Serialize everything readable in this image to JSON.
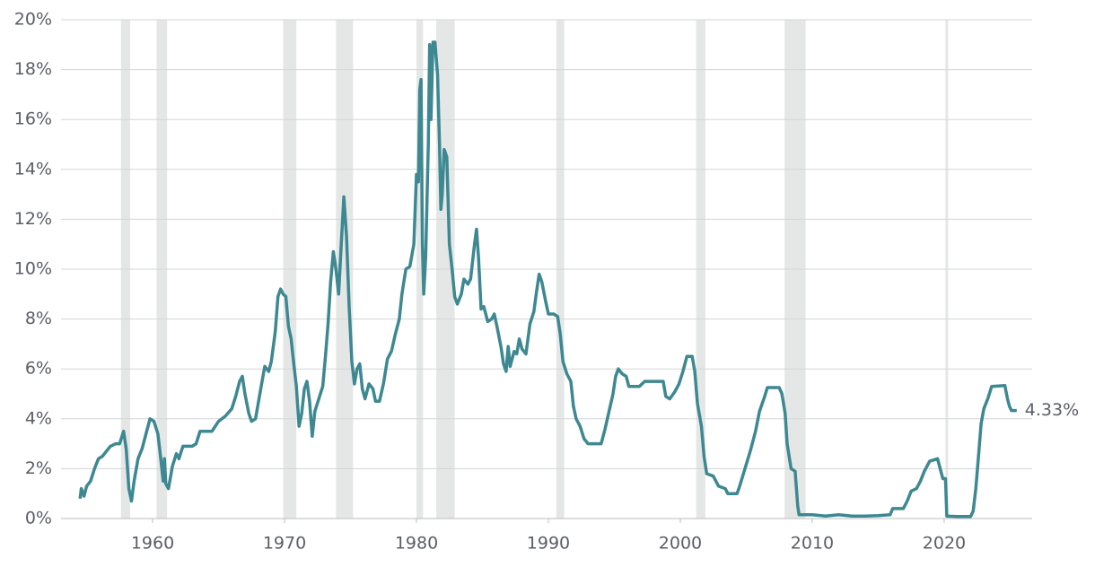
{
  "chart_data": {
    "type": "line",
    "x": [
      1954.5,
      1954.6,
      1954.8,
      1955.0,
      1955.3,
      1955.6,
      1955.9,
      1956.2,
      1956.5,
      1956.8,
      1957.2,
      1957.5,
      1957.8,
      1958.0,
      1958.2,
      1958.4,
      1958.6,
      1958.9,
      1959.2,
      1959.5,
      1959.8,
      1960.1,
      1960.4,
      1960.6,
      1960.8,
      1960.9,
      1961.0,
      1961.2,
      1961.5,
      1961.8,
      1962.0,
      1962.3,
      1962.7,
      1963.0,
      1963.3,
      1963.6,
      1964.0,
      1964.5,
      1965.0,
      1965.5,
      1966.0,
      1966.3,
      1966.6,
      1966.8,
      1967.0,
      1967.3,
      1967.5,
      1967.8,
      1968.0,
      1968.3,
      1968.5,
      1968.8,
      1969.0,
      1969.3,
      1969.5,
      1969.7,
      1969.9,
      1970.1,
      1970.3,
      1970.5,
      1970.7,
      1970.9,
      1971.1,
      1971.3,
      1971.5,
      1971.7,
      1971.9,
      1972.1,
      1972.3,
      1972.6,
      1972.9,
      1973.1,
      1973.3,
      1973.5,
      1973.7,
      1973.9,
      1974.1,
      1974.3,
      1974.5,
      1974.7,
      1974.9,
      1975.1,
      1975.3,
      1975.5,
      1975.7,
      1975.9,
      1976.1,
      1976.4,
      1976.7,
      1976.9,
      1977.2,
      1977.5,
      1977.8,
      1978.1,
      1978.4,
      1978.7,
      1978.9,
      1979.2,
      1979.5,
      1979.8,
      1980.0,
      1980.15,
      1980.25,
      1980.35,
      1980.45,
      1980.55,
      1980.7,
      1980.9,
      1981.0,
      1981.1,
      1981.25,
      1981.4,
      1981.6,
      1981.75,
      1981.85,
      1981.95,
      1982.1,
      1982.3,
      1982.5,
      1982.7,
      1982.9,
      1983.1,
      1983.4,
      1983.6,
      1983.9,
      1984.1,
      1984.4,
      1984.55,
      1984.7,
      1984.9,
      1985.1,
      1985.4,
      1985.7,
      1985.9,
      1986.1,
      1986.4,
      1986.6,
      1986.8,
      1986.95,
      1987.1,
      1987.4,
      1987.6,
      1987.8,
      1988.0,
      1988.3,
      1988.6,
      1988.9,
      1989.1,
      1989.3,
      1989.5,
      1989.8,
      1990.0,
      1990.4,
      1990.7,
      1990.9,
      1991.1,
      1991.4,
      1991.7,
      1991.9,
      1992.1,
      1992.4,
      1992.7,
      1993.0,
      1993.5,
      1994.0,
      1994.3,
      1994.6,
      1994.9,
      1995.1,
      1995.3,
      1995.6,
      1995.9,
      1996.1,
      1996.5,
      1996.9,
      1997.3,
      1997.8,
      1998.3,
      1998.7,
      1998.9,
      1999.2,
      1999.6,
      1999.9,
      2000.2,
      2000.5,
      2000.9,
      2001.1,
      2001.3,
      2001.6,
      2001.8,
      2002.0,
      2002.5,
      2002.9,
      2003.4,
      2003.6,
      2004.3,
      2004.5,
      2004.9,
      2005.3,
      2005.7,
      2006.0,
      2006.4,
      2006.6,
      2007.5,
      2007.7,
      2007.95,
      2008.1,
      2008.4,
      2008.7,
      2008.9,
      2009.0,
      2010.0,
      2011.0,
      2012.0,
      2013.0,
      2014.0,
      2015.0,
      2015.9,
      2016.1,
      2016.9,
      2017.2,
      2017.5,
      2017.9,
      2018.2,
      2018.5,
      2018.9,
      2019.5,
      2019.7,
      2019.9,
      2020.1,
      2020.2,
      2021.0,
      2022.0,
      2022.2,
      2022.4,
      2022.6,
      2022.8,
      2023.0,
      2023.3,
      2023.6,
      2024.6,
      2024.8,
      2024.95,
      2025.1,
      2025.5
    ],
    "series": [
      {
        "color": "#3d8891",
        "values": [
          0.8,
          1.2,
          0.9,
          1.3,
          1.5,
          2.0,
          2.4,
          2.5,
          2.7,
          2.9,
          3.0,
          3.0,
          3.5,
          2.8,
          1.2,
          0.7,
          1.5,
          2.4,
          2.8,
          3.4,
          4.0,
          3.9,
          3.4,
          2.5,
          1.5,
          2.4,
          1.4,
          1.2,
          2.1,
          2.6,
          2.4,
          2.9,
          2.9,
          2.9,
          3.0,
          3.5,
          3.5,
          3.5,
          3.9,
          4.1,
          4.4,
          4.9,
          5.5,
          5.7,
          5.0,
          4.2,
          3.9,
          4.0,
          4.6,
          5.5,
          6.1,
          5.9,
          6.3,
          7.5,
          8.9,
          9.2,
          9.0,
          8.9,
          7.7,
          7.2,
          6.2,
          5.3,
          3.7,
          4.2,
          5.2,
          5.5,
          4.7,
          3.3,
          4.3,
          4.8,
          5.3,
          6.5,
          7.8,
          9.5,
          10.7,
          10.0,
          9.0,
          11.0,
          12.9,
          11.3,
          8.5,
          6.3,
          5.4,
          6.0,
          6.2,
          5.2,
          4.8,
          5.4,
          5.2,
          4.7,
          4.7,
          5.4,
          6.4,
          6.7,
          7.4,
          8.0,
          9.0,
          10.0,
          10.1,
          11.0,
          13.8,
          13.5,
          17.2,
          17.6,
          11.0,
          9.0,
          10.5,
          15.0,
          19.0,
          16.0,
          19.1,
          19.1,
          17.8,
          15.0,
          12.4,
          13.0,
          14.8,
          14.5,
          11.0,
          10.0,
          8.9,
          8.6,
          9.0,
          9.6,
          9.4,
          9.6,
          11.0,
          11.6,
          10.5,
          8.4,
          8.5,
          7.9,
          8.0,
          8.2,
          7.7,
          6.9,
          6.2,
          5.9,
          6.9,
          6.1,
          6.7,
          6.6,
          7.2,
          6.8,
          6.6,
          7.8,
          8.3,
          9.1,
          9.8,
          9.5,
          8.7,
          8.2,
          8.2,
          8.1,
          7.4,
          6.3,
          5.8,
          5.5,
          4.5,
          4.0,
          3.7,
          3.2,
          3.0,
          3.0,
          3.0,
          3.6,
          4.3,
          5.0,
          5.7,
          6.0,
          5.8,
          5.7,
          5.3,
          5.3,
          5.3,
          5.5,
          5.5,
          5.5,
          5.5,
          4.9,
          4.8,
          5.1,
          5.4,
          5.9,
          6.5,
          6.5,
          5.9,
          4.6,
          3.7,
          2.5,
          1.8,
          1.7,
          1.3,
          1.2,
          1.0,
          1.0,
          1.3,
          2.0,
          2.7,
          3.5,
          4.3,
          4.9,
          5.25,
          5.25,
          5.0,
          4.2,
          3.0,
          2.0,
          1.9,
          0.5,
          0.15,
          0.15,
          0.1,
          0.15,
          0.1,
          0.1,
          0.12,
          0.15,
          0.4,
          0.4,
          0.7,
          1.1,
          1.2,
          1.5,
          1.9,
          2.3,
          2.4,
          2.0,
          1.6,
          1.6,
          0.1,
          0.08,
          0.08,
          0.3,
          1.2,
          2.5,
          3.8,
          4.4,
          4.8,
          5.3,
          5.33,
          4.8,
          4.5,
          4.33,
          4.33
        ]
      }
    ],
    "annotations": [
      {
        "x": 2025.5,
        "y": 4.33,
        "label": "4.33%"
      }
    ],
    "shaded_ranges": [
      [
        1957.6,
        1958.3
      ],
      [
        1960.3,
        1961.1
      ],
      [
        1969.9,
        1970.9
      ],
      [
        1973.9,
        1975.2
      ],
      [
        1980.0,
        1980.5
      ],
      [
        1981.5,
        1982.9
      ],
      [
        1990.6,
        1991.2
      ],
      [
        2001.2,
        2001.9
      ],
      [
        2007.9,
        2009.5
      ],
      [
        2020.1,
        2020.3
      ]
    ],
    "shade_color": "#e5e7e7",
    "xlim": [
      1953.06,
      2026.67
    ],
    "xticks": [
      1960,
      1970,
      1980,
      1990,
      2000,
      2010,
      2020
    ],
    "ylim": [
      0,
      20
    ],
    "yticks": [
      {
        "value": 0,
        "label": "0%"
      },
      {
        "value": 2,
        "label": "2%"
      },
      {
        "value": 4,
        "label": "4%"
      },
      {
        "value": 6,
        "label": "6%"
      },
      {
        "value": 8,
        "label": "8%"
      },
      {
        "value": 10,
        "label": "10%"
      },
      {
        "value": 12,
        "label": "12%"
      },
      {
        "value": 14,
        "label": "14%"
      },
      {
        "value": 16,
        "label": "16%"
      },
      {
        "value": 18,
        "label": "18%"
      },
      {
        "value": 20,
        "label": "20%"
      }
    ],
    "grid": true
  }
}
